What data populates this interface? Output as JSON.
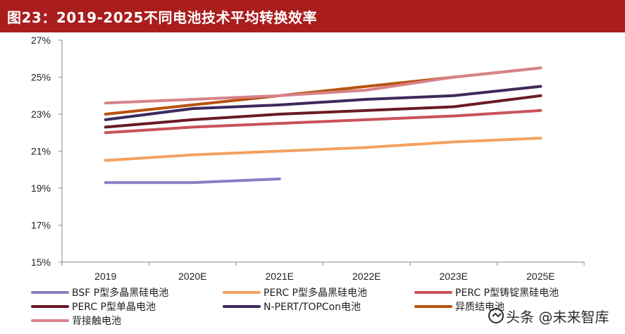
{
  "title": "图23：2019-2025不同电池技术平均转换效率",
  "watermark": "头条 @未来智库",
  "chart_data": {
    "type": "line",
    "categories": [
      "2019",
      "2020E",
      "2021E",
      "2022E",
      "2023E",
      "2025E"
    ],
    "ylim": [
      0.15,
      0.27
    ],
    "yticks": [
      "15%",
      "17%",
      "19%",
      "21%",
      "23%",
      "25%",
      "27%"
    ],
    "ytick_values": [
      0.15,
      0.17,
      0.19,
      0.21,
      0.23,
      0.25,
      0.27
    ],
    "grid": false,
    "legend_position": "bottom",
    "series": [
      {
        "name": "BSF P型多晶黑硅电池",
        "color": "#8c7fc6",
        "values": [
          0.193,
          0.193,
          0.195,
          null,
          null,
          null
        ]
      },
      {
        "name": "PERC P型多晶黑硅电池",
        "color": "#f4a15f",
        "values": [
          0.205,
          0.208,
          0.21,
          0.212,
          0.215,
          0.217
        ]
      },
      {
        "name": "PERC P型铸锭黑硅电池",
        "color": "#c9535a",
        "values": [
          0.22,
          0.223,
          0.225,
          0.227,
          0.229,
          0.232
        ]
      },
      {
        "name": "PERC P型单晶电池",
        "color": "#6b1a22",
        "values": [
          0.223,
          0.227,
          0.23,
          0.232,
          0.234,
          0.24
        ]
      },
      {
        "name": "N-PERT/TOPCon电池",
        "color": "#3d2a5c",
        "values": [
          0.227,
          0.233,
          0.235,
          0.238,
          0.24,
          0.245
        ]
      },
      {
        "name": "异质结电池",
        "color": "#b8520f",
        "values": [
          0.23,
          0.235,
          0.24,
          0.245,
          0.25,
          0.255
        ]
      },
      {
        "name": "背接触电池",
        "color": "#d68288",
        "values": [
          0.236,
          0.238,
          0.24,
          0.243,
          0.25,
          0.255
        ]
      }
    ]
  }
}
